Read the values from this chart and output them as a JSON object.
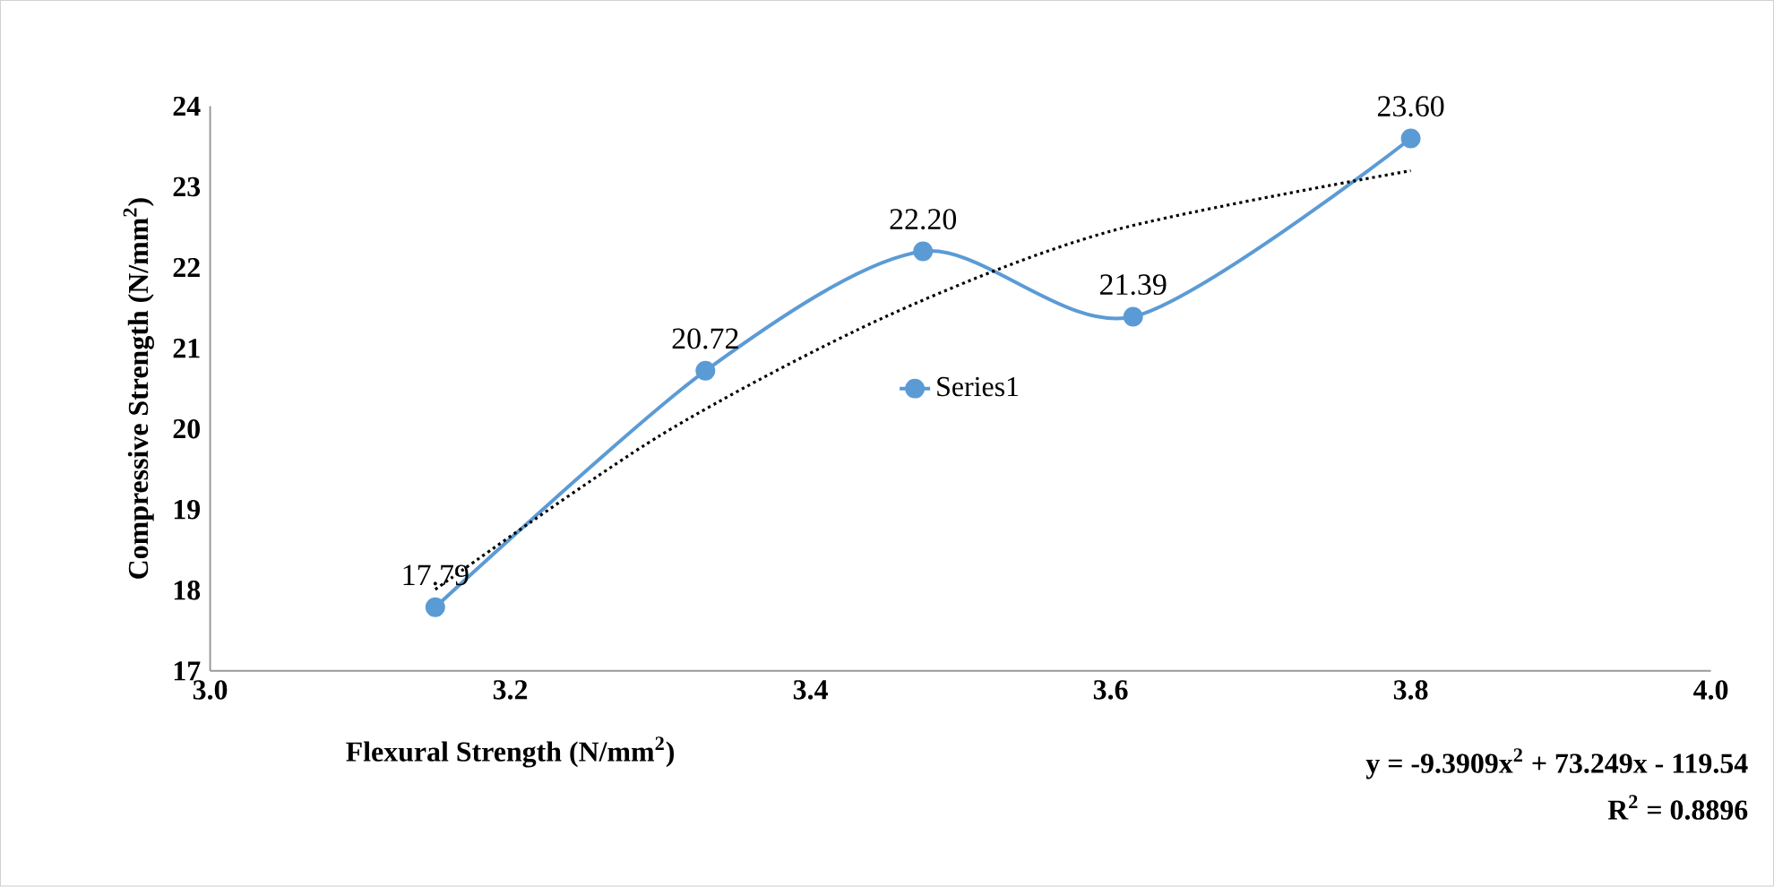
{
  "chart_data": {
    "type": "line",
    "xlabel": "Flexural Strength (N/mm$^{2}$)",
    "ylabel": "Compressive Strength (N/mm$^{2}$)",
    "xlim": [
      3.0,
      4.0
    ],
    "ylim": [
      17,
      24
    ],
    "xticks": [
      {
        "value": 3.0,
        "label": "3.0"
      },
      {
        "value": 3.2,
        "label": "3.2"
      },
      {
        "value": 3.4,
        "label": "3.4"
      },
      {
        "value": 3.6,
        "label": "3.6"
      },
      {
        "value": 3.8,
        "label": "3.8"
      },
      {
        "value": 4.0,
        "label": "4.0"
      }
    ],
    "yticks": [
      17,
      18,
      19,
      20,
      21,
      22,
      23,
      24
    ],
    "grid": false,
    "legend": "center",
    "marker": "circle",
    "series": [
      {
        "name": "Series1",
        "color": "#5b9bd5",
        "x": [
          3.15,
          3.33,
          3.475,
          3.615,
          3.8
        ],
        "values": [
          17.79,
          20.72,
          22.2,
          21.39,
          23.6
        ],
        "value_labels": [
          "17.79",
          "20.72",
          "22.20",
          "21.39",
          "23.60"
        ]
      },
      {
        "type": "line",
        "color": "#000000",
        "line_style": "dotted",
        "marker": "none",
        "x": [
          3.15,
          3.3,
          3.45,
          3.6,
          3.8
        ],
        "values": [
          18.01,
          19.92,
          21.39,
          22.45,
          23.2
        ]
      }
    ],
    "annotations": [
      "y = -9.3909x$^{2}$ + 73.249x - 119.54",
      "R$^{2}$ = 0.8896"
    ]
  }
}
